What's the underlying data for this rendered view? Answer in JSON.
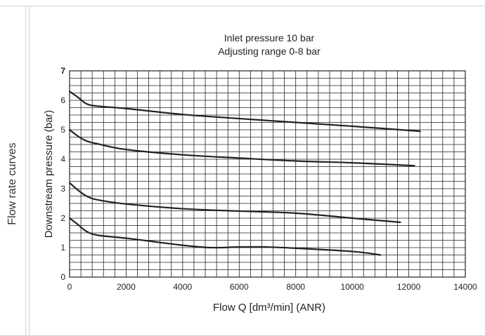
{
  "side_label": "Flow rate curves",
  "chart_data": {
    "type": "line",
    "title": "Inlet pressure 10 bar",
    "subtitle": "Adjusting range 0-8 bar",
    "xlabel": "Flow Q [dm³/min] (ANR)",
    "ylabel": "Downstream pressure (bar)",
    "xlim": [
      0,
      14000
    ],
    "ylim": [
      0,
      7
    ],
    "xticks": [
      0,
      2000,
      4000,
      6000,
      8000,
      10000,
      12000,
      14000
    ],
    "yticks": [
      0,
      1,
      2,
      3,
      4,
      5,
      6,
      7
    ],
    "grid": true,
    "x_minor_step": 400,
    "y_minor_step": 0.25,
    "series": [
      {
        "points": [
          [
            0,
            6.3
          ],
          [
            300,
            6.1
          ],
          [
            600,
            5.88
          ],
          [
            1000,
            5.8
          ],
          [
            2000,
            5.72
          ],
          [
            4000,
            5.52
          ],
          [
            6000,
            5.38
          ],
          [
            8000,
            5.25
          ],
          [
            10000,
            5.12
          ],
          [
            12400,
            4.95
          ]
        ]
      },
      {
        "points": [
          [
            0,
            5.0
          ],
          [
            300,
            4.78
          ],
          [
            600,
            4.62
          ],
          [
            1000,
            4.52
          ],
          [
            2000,
            4.33
          ],
          [
            4000,
            4.15
          ],
          [
            6000,
            4.04
          ],
          [
            8000,
            3.94
          ],
          [
            10000,
            3.88
          ],
          [
            12200,
            3.78
          ]
        ]
      },
      {
        "points": [
          [
            0,
            3.2
          ],
          [
            300,
            2.95
          ],
          [
            600,
            2.75
          ],
          [
            1000,
            2.62
          ],
          [
            2000,
            2.48
          ],
          [
            4000,
            2.32
          ],
          [
            6000,
            2.24
          ],
          [
            8000,
            2.17
          ],
          [
            10000,
            2.0
          ],
          [
            11700,
            1.86
          ]
        ]
      },
      {
        "points": [
          [
            0,
            2.0
          ],
          [
            300,
            1.78
          ],
          [
            600,
            1.55
          ],
          [
            1000,
            1.42
          ],
          [
            2000,
            1.32
          ],
          [
            3000,
            1.2
          ],
          [
            4000,
            1.08
          ],
          [
            5000,
            1.0
          ],
          [
            6000,
            1.02
          ],
          [
            7000,
            1.02
          ],
          [
            8000,
            0.98
          ],
          [
            10000,
            0.87
          ],
          [
            11000,
            0.75
          ]
        ]
      }
    ],
    "colors": {
      "line": "#222222",
      "grid": "#222222"
    }
  }
}
